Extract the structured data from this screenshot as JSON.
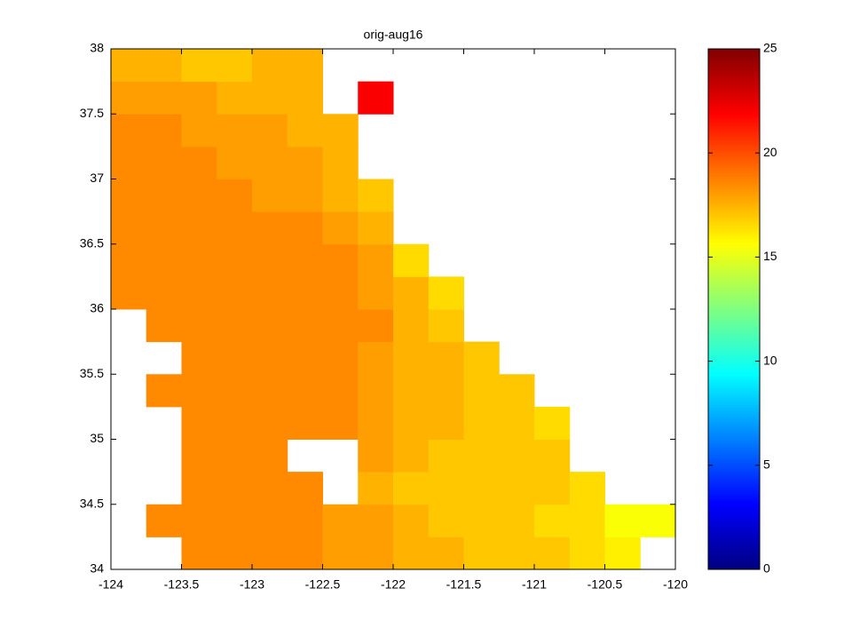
{
  "chart_data": {
    "type": "heatmap",
    "title": "orig-aug16",
    "colormap": "jet",
    "x": [
      -123.875,
      -123.625,
      -123.375,
      -123.125,
      -122.875,
      -122.625,
      -122.375,
      -122.125,
      -121.875,
      -121.625,
      -121.375,
      -121.125,
      -120.875,
      -120.625,
      -120.375,
      -120.125
    ],
    "y": [
      34.125,
      34.375,
      34.625,
      34.875,
      35.125,
      35.375,
      35.625,
      35.875,
      36.125,
      36.375,
      36.625,
      36.875,
      37.125,
      37.375,
      37.625,
      37.875
    ],
    "values": [
      [
        null,
        null,
        18.5,
        18.5,
        18.5,
        18.5,
        18,
        18,
        17.5,
        17.5,
        17,
        17,
        17,
        16.5,
        16,
        null
      ],
      [
        null,
        18.5,
        18.5,
        18.5,
        18.5,
        18.5,
        18,
        18,
        17.5,
        17,
        17,
        17,
        16.5,
        16.5,
        15.5,
        15.5
      ],
      [
        null,
        null,
        18.5,
        18.5,
        18.5,
        18.5,
        null,
        17.5,
        17,
        17,
        17,
        17,
        17,
        16.5,
        null,
        null
      ],
      [
        null,
        null,
        18.5,
        18.5,
        18.5,
        null,
        null,
        18,
        17.5,
        17,
        17,
        17,
        17,
        null,
        null,
        null
      ],
      [
        null,
        null,
        18.5,
        18.5,
        18.5,
        18.5,
        18.5,
        18,
        17.5,
        17.5,
        17,
        17,
        16.5,
        null,
        null,
        null
      ],
      [
        null,
        18.5,
        18.5,
        18.5,
        18.5,
        18.5,
        18.5,
        18,
        17.5,
        17.5,
        17,
        17,
        null,
        null,
        null,
        null
      ],
      [
        null,
        null,
        18.5,
        18.5,
        18.5,
        18.5,
        18.5,
        18,
        17.5,
        17.5,
        17,
        null,
        null,
        null,
        null,
        null
      ],
      [
        null,
        18.5,
        18.5,
        18.5,
        18.5,
        18.5,
        18.5,
        18.5,
        17.5,
        17,
        null,
        null,
        null,
        null,
        null,
        null
      ],
      [
        18.5,
        18.5,
        18.5,
        18.5,
        18.5,
        18.5,
        18.5,
        18,
        17.5,
        16.5,
        null,
        null,
        null,
        null,
        null,
        null
      ],
      [
        18.5,
        18.5,
        18.5,
        18.5,
        18.5,
        18.5,
        18.5,
        18,
        16.5,
        null,
        null,
        null,
        null,
        null,
        null,
        null
      ],
      [
        18.5,
        18.5,
        18.5,
        18.5,
        18.5,
        18.5,
        18,
        17.5,
        null,
        null,
        null,
        null,
        null,
        null,
        null,
        null
      ],
      [
        18.5,
        18.5,
        18.5,
        18.5,
        18,
        18,
        17.5,
        17,
        null,
        null,
        null,
        null,
        null,
        null,
        null,
        null
      ],
      [
        18.5,
        18.5,
        18.5,
        18,
        18,
        18,
        17.5,
        null,
        null,
        null,
        null,
        null,
        null,
        null,
        null,
        null
      ],
      [
        18.5,
        18.5,
        18,
        18,
        18,
        17.5,
        17.5,
        null,
        null,
        null,
        null,
        null,
        null,
        null,
        null,
        null
      ],
      [
        18,
        18,
        18,
        17.5,
        17.5,
        17.5,
        null,
        22,
        null,
        null,
        null,
        null,
        null,
        null,
        null,
        null
      ],
      [
        17.5,
        17.5,
        17,
        17,
        17.5,
        17.5,
        null,
        null,
        null,
        null,
        null,
        null,
        null,
        null,
        null,
        null
      ]
    ],
    "xlim": [
      -124,
      -120
    ],
    "xticks": [
      -124,
      -123.5,
      -123,
      -122.5,
      -122,
      -121.5,
      -121,
      -120.5,
      -120
    ],
    "ylim": [
      34,
      38
    ],
    "yticks": [
      34,
      34.5,
      35,
      35.5,
      36,
      36.5,
      37,
      37.5,
      38
    ],
    "clim": [
      0,
      25
    ],
    "cticks": [
      0,
      5,
      10,
      15,
      20,
      25
    ]
  }
}
